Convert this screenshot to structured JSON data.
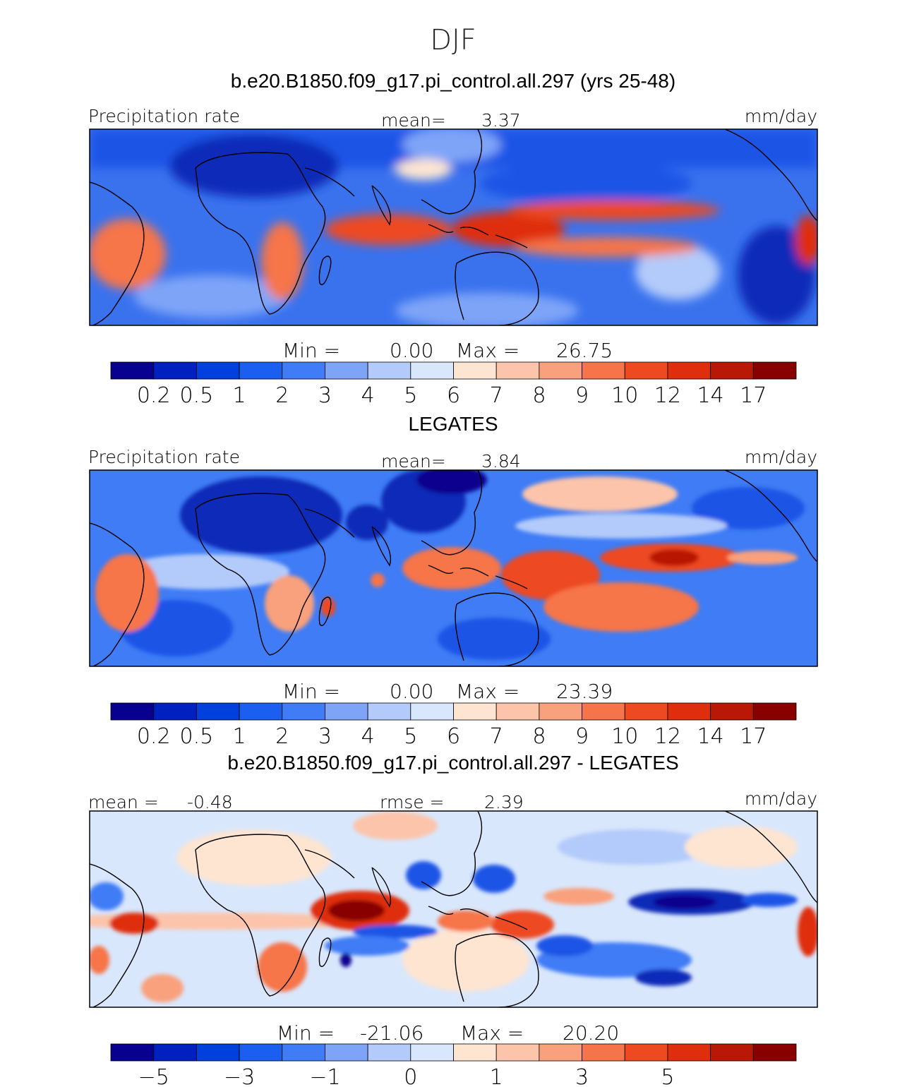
{
  "season": "DJF",
  "chart_data": [
    {
      "type": "heatmap",
      "title": "b.e20.B1850.f09_g17.pi_control.all.297 (yrs 25-48)",
      "left_label": "Precipitation rate",
      "stat_label": "mean=",
      "stat_value": "3.37",
      "units": "mm/day",
      "min_label": "Min =",
      "min_value": "0.00",
      "max_label": "Max =",
      "max_value": "26.75",
      "colorbar": {
        "colors": [
          "#08008f",
          "#0020c0",
          "#0040dc",
          "#1a5ff0",
          "#3f7cf5",
          "#7ea4f8",
          "#b3cbfa",
          "#d9e7fc",
          "#fde5d2",
          "#fcc4aa",
          "#f9a07c",
          "#f6744a",
          "#ed4a22",
          "#df2e0e",
          "#b81805",
          "#880000"
        ],
        "tick_labels": [
          "0.2",
          "0.5",
          "1",
          "2",
          "3",
          "4",
          "5",
          "6",
          "7",
          "8",
          "9",
          "10",
          "12",
          "14",
          "17"
        ]
      }
    },
    {
      "type": "heatmap",
      "title": "LEGATES",
      "left_label": "Precipitation rate",
      "stat_label": "mean=",
      "stat_value": "3.84",
      "units": "mm/day",
      "min_label": "Min =",
      "min_value": "0.00",
      "max_label": "Max =",
      "max_value": "23.39",
      "colorbar": {
        "colors": [
          "#08008f",
          "#0020c0",
          "#0040dc",
          "#1a5ff0",
          "#3f7cf5",
          "#7ea4f8",
          "#b3cbfa",
          "#d9e7fc",
          "#fde5d2",
          "#fcc4aa",
          "#f9a07c",
          "#f6744a",
          "#ed4a22",
          "#df2e0e",
          "#b81805",
          "#880000"
        ],
        "tick_labels": [
          "0.2",
          "0.5",
          "1",
          "2",
          "3",
          "4",
          "5",
          "6",
          "7",
          "8",
          "9",
          "10",
          "12",
          "14",
          "17"
        ]
      }
    },
    {
      "type": "heatmap",
      "title": "b.e20.B1850.f09_g17.pi_control.all.297 - LEGATES",
      "left_label": "mean =",
      "left_value": "-0.48",
      "stat_label": "rmse =",
      "stat_value": "2.39",
      "units": "mm/day",
      "min_label": "Min =",
      "min_value": "-21.06",
      "max_label": "Max =",
      "max_value": "20.20",
      "colorbar": {
        "colors": [
          "#08008f",
          "#0020c0",
          "#0040dc",
          "#1a5ff0",
          "#3f7cf5",
          "#7ea4f8",
          "#b3cbfa",
          "#d9e7fc",
          "#fde5d2",
          "#fcc4aa",
          "#f9a07c",
          "#f6744a",
          "#ed4a22",
          "#df2e0e",
          "#b81805",
          "#880000"
        ],
        "tick_labels": [
          "-5",
          "",
          "-3",
          "",
          "-1",
          "",
          "0",
          "",
          "1",
          "",
          "3",
          "",
          "5",
          "",
          ""
        ]
      }
    }
  ]
}
